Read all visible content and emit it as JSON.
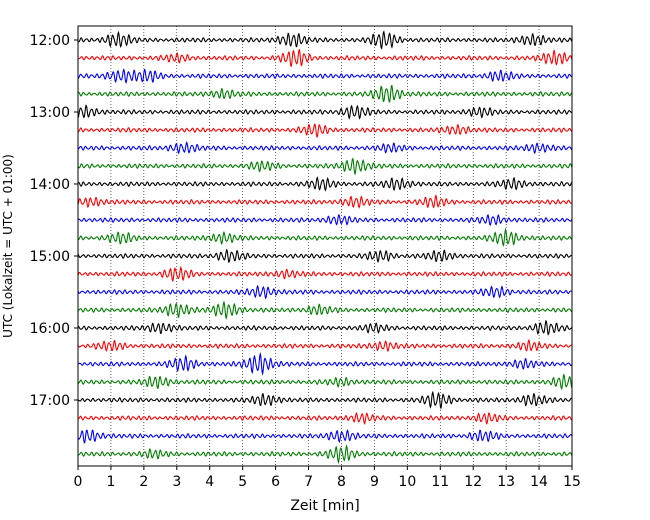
{
  "chart_data": {
    "type": "line",
    "title": "",
    "xlabel": "Zeit  [min]",
    "ylabel": "UTC (Lokalzeit = UTC + 01:00)",
    "xlim": [
      0,
      15
    ],
    "x_ticks": [
      "0",
      "1",
      "2",
      "3",
      "4",
      "5",
      "6",
      "7",
      "8",
      "9",
      "10",
      "11",
      "12",
      "13",
      "14",
      "15"
    ],
    "y_ticks": [
      "12:00",
      "13:00",
      "14:00",
      "15:00",
      "16:00",
      "17:00"
    ],
    "grid": "vertical dotted lines at each minute",
    "trace_interval_minutes": 15,
    "trace_colors": [
      "#000000",
      "#ff0000",
      "#0000ff",
      "#007f00"
    ],
    "traces": [
      {
        "start": "12:00",
        "color": "#000000",
        "bursts": [
          [
            1.2,
            1.0
          ],
          [
            6.5,
            1.0
          ],
          [
            9.3,
            1.2
          ],
          [
            13.8,
            0.8
          ]
        ]
      },
      {
        "start": "12:15",
        "color": "#ff0000",
        "bursts": [
          [
            6.6,
            1.2
          ],
          [
            14.5,
            1.0
          ],
          [
            3.0,
            0.5
          ]
        ]
      },
      {
        "start": "12:30",
        "color": "#0000ff",
        "bursts": [
          [
            1.3,
            0.9
          ],
          [
            2.1,
            0.8
          ],
          [
            12.8,
            0.7
          ]
        ]
      },
      {
        "start": "12:45",
        "color": "#007f00",
        "bursts": [
          [
            9.4,
            1.3
          ],
          [
            4.4,
            0.6
          ]
        ]
      },
      {
        "start": "13:00",
        "color": "#000000",
        "bursts": [
          [
            0.2,
            0.8
          ],
          [
            8.4,
            0.9
          ],
          [
            12.2,
            0.6
          ]
        ]
      },
      {
        "start": "13:15",
        "color": "#ff0000",
        "bursts": [
          [
            7.2,
            0.8
          ],
          [
            11.5,
            0.6
          ]
        ]
      },
      {
        "start": "13:30",
        "color": "#0000ff",
        "bursts": [
          [
            3.2,
            0.7
          ],
          [
            9.5,
            0.5
          ],
          [
            14.0,
            0.6
          ]
        ]
      },
      {
        "start": "13:45",
        "color": "#007f00",
        "bursts": [
          [
            8.4,
            1.1
          ],
          [
            5.6,
            0.6
          ]
        ]
      },
      {
        "start": "14:00",
        "color": "#000000",
        "bursts": [
          [
            7.4,
            0.8
          ],
          [
            9.7,
            0.8
          ],
          [
            13.2,
            0.7
          ]
        ]
      },
      {
        "start": "14:15",
        "color": "#ff0000",
        "bursts": [
          [
            0.4,
            0.6
          ],
          [
            8.4,
            0.7
          ],
          [
            10.8,
            0.7
          ]
        ]
      },
      {
        "start": "14:30",
        "color": "#0000ff",
        "bursts": [
          [
            7.9,
            0.6
          ],
          [
            12.6,
            0.6
          ]
        ]
      },
      {
        "start": "14:45",
        "color": "#007f00",
        "bursts": [
          [
            1.3,
            0.7
          ],
          [
            4.4,
            0.7
          ],
          [
            13.0,
            1.1
          ]
        ]
      },
      {
        "start": "15:00",
        "color": "#000000",
        "bursts": [
          [
            4.6,
            0.8
          ],
          [
            9.2,
            0.7
          ],
          [
            11.0,
            0.7
          ]
        ]
      },
      {
        "start": "15:15",
        "color": "#ff0000",
        "bursts": [
          [
            3.0,
            0.9
          ],
          [
            6.3,
            0.5
          ]
        ]
      },
      {
        "start": "15:30",
        "color": "#0000ff",
        "bursts": [
          [
            5.6,
            0.8
          ],
          [
            12.7,
            0.7
          ]
        ]
      },
      {
        "start": "15:45",
        "color": "#007f00",
        "bursts": [
          [
            3.0,
            1.0
          ],
          [
            4.5,
            1.1
          ],
          [
            7.3,
            0.6
          ]
        ]
      },
      {
        "start": "16:00",
        "color": "#000000",
        "bursts": [
          [
            2.5,
            0.7
          ],
          [
            14.2,
            0.9
          ],
          [
            9.0,
            0.5
          ]
        ]
      },
      {
        "start": "16:15",
        "color": "#ff0000",
        "bursts": [
          [
            1.0,
            0.6
          ],
          [
            9.3,
            0.6
          ],
          [
            13.7,
            0.6
          ]
        ]
      },
      {
        "start": "16:30",
        "color": "#0000ff",
        "bursts": [
          [
            3.2,
            1.0
          ],
          [
            5.5,
            1.5
          ],
          [
            13.5,
            0.6
          ]
        ]
      },
      {
        "start": "16:45",
        "color": "#007f00",
        "bursts": [
          [
            2.4,
            0.8
          ],
          [
            14.8,
            0.9
          ],
          [
            8.0,
            0.5
          ]
        ]
      },
      {
        "start": "17:00",
        "color": "#000000",
        "bursts": [
          [
            5.7,
            0.8
          ],
          [
            10.9,
            1.1
          ],
          [
            13.8,
            0.8
          ]
        ]
      },
      {
        "start": "17:15",
        "color": "#ff0000",
        "bursts": [
          [
            8.6,
            0.6
          ],
          [
            12.4,
            0.6
          ]
        ]
      },
      {
        "start": "17:30",
        "color": "#0000ff",
        "bursts": [
          [
            0.3,
            0.9
          ],
          [
            8.0,
            0.8
          ],
          [
            12.3,
            0.7
          ]
        ]
      },
      {
        "start": "17:45",
        "color": "#007f00",
        "bursts": [
          [
            8.0,
            1.1
          ],
          [
            2.3,
            0.5
          ]
        ]
      }
    ]
  }
}
